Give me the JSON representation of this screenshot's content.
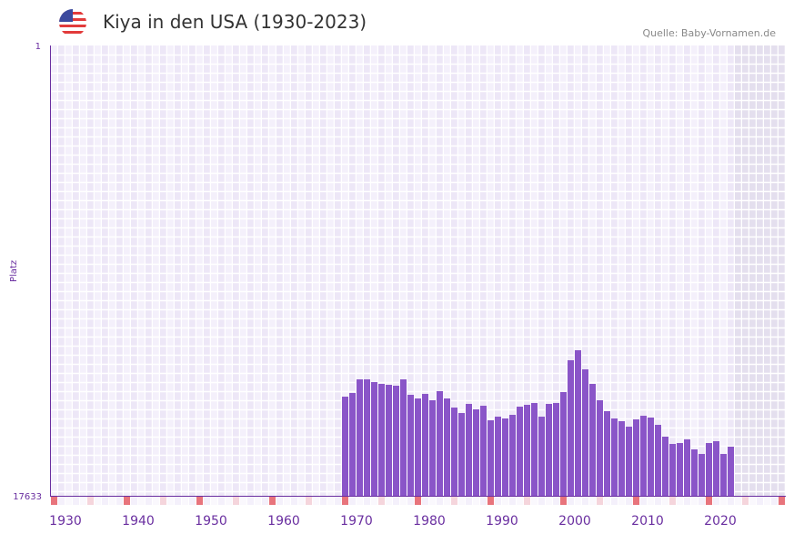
{
  "header": {
    "title": "Kiya in den USA (1930-2023)",
    "source": "Quelle: Baby-Vornamen.de",
    "flag_icon": "us-flag-icon"
  },
  "colors": {
    "bar": "#8a55c8",
    "axis": "#6a2fa0",
    "decade_marker": "#e8747c",
    "half_marker": "#f5d5dc",
    "future": "#e4dfee"
  },
  "chart_data": {
    "type": "bar",
    "title": "Kiya in den USA (1930-2023)",
    "xlabel": "",
    "ylabel": "Platz",
    "ylim": [
      1,
      17633
    ],
    "y_inverted": true,
    "y_ticks": [
      "1",
      "17633"
    ],
    "xlim": [
      1930,
      2030
    ],
    "x_ticks": [
      "1930",
      "1940",
      "1950",
      "1960",
      "1970",
      "1980",
      "1990",
      "2000",
      "2010",
      "2020"
    ],
    "future_from": 2024,
    "x": [
      1970,
      1971,
      1972,
      1973,
      1974,
      1975,
      1976,
      1977,
      1978,
      1979,
      1980,
      1981,
      1982,
      1983,
      1984,
      1985,
      1986,
      1987,
      1988,
      1989,
      1990,
      1991,
      1992,
      1993,
      1994,
      1995,
      1996,
      1997,
      1998,
      1999,
      2000,
      2001,
      2002,
      2003,
      2004,
      2005,
      2006,
      2007,
      2008,
      2009,
      2010,
      2011,
      2012,
      2013,
      2014,
      2015,
      2016,
      2017,
      2018,
      2019,
      2020,
      2021,
      2022,
      2023
    ],
    "values": [
      13751,
      13608,
      13074,
      13074,
      13181,
      13252,
      13287,
      13323,
      13074,
      13679,
      13822,
      13644,
      13893,
      13537,
      13822,
      14178,
      14392,
      14035,
      14249,
      14107,
      14677,
      14534,
      14605,
      14463,
      14142,
      14071,
      14000,
      14534,
      14035,
      14000,
      13572,
      12326,
      11934,
      12682,
      13252,
      13893,
      14320,
      14605,
      14712,
      14926,
      14641,
      14499,
      14570,
      14855,
      15318,
      15603,
      15567,
      15425,
      15816,
      15995,
      15567,
      15496,
      15995,
      15710
    ]
  }
}
